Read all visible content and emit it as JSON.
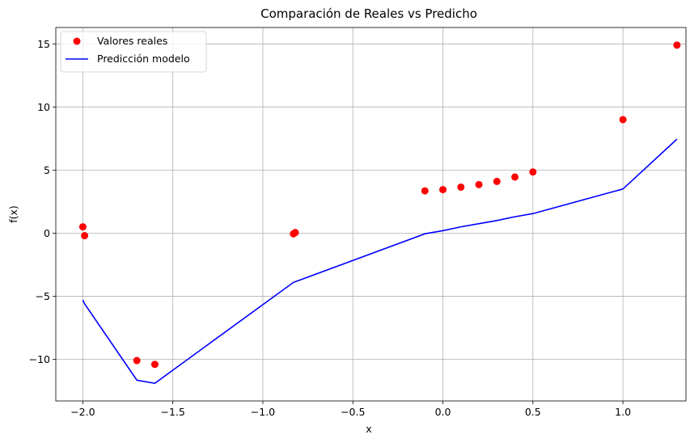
{
  "chart_data": {
    "type": "line",
    "title": "Comparación de Reales vs Predicho",
    "xlabel": "x",
    "ylabel": "f(x)",
    "xlim": [
      -2.15,
      1.35
    ],
    "ylim": [
      -13.3,
      16.3
    ],
    "xticks": [
      -2.0,
      -1.5,
      -1.0,
      -0.5,
      0.0,
      0.5,
      1.0
    ],
    "xtick_labels": [
      "−2.0",
      "−1.5",
      "−1.0",
      "−0.5",
      "0.0",
      "0.5",
      "1.0"
    ],
    "yticks": [
      -10,
      -5,
      0,
      5,
      10,
      15
    ],
    "ytick_labels": [
      "−10",
      "−5",
      "0",
      "5",
      "10",
      "15"
    ],
    "grid": true,
    "legend_position": "top-left",
    "series": [
      {
        "name": "Valores reales",
        "kind": "scatter",
        "color": "#ff0000",
        "x": [
          -2.0,
          -1.99,
          -1.7,
          -1.6,
          -0.83,
          -0.82,
          -0.1,
          0.0,
          0.1,
          0.2,
          0.3,
          0.4,
          0.5,
          1.0,
          1.3
        ],
        "y": [
          0.5,
          -0.2,
          -10.1,
          -10.4,
          -0.05,
          0.05,
          3.35,
          3.45,
          3.65,
          3.85,
          4.1,
          4.45,
          4.85,
          9.0,
          14.9
        ]
      },
      {
        "name": "Predicción modelo",
        "kind": "line",
        "color": "#0000ff",
        "x": [
          -2.0,
          -1.99,
          -1.7,
          -1.6,
          -0.83,
          -0.82,
          -0.1,
          0.0,
          0.1,
          0.2,
          0.3,
          0.4,
          0.5,
          1.0,
          1.3
        ],
        "y": [
          -5.3,
          -5.6,
          -11.65,
          -11.9,
          -3.9,
          -3.85,
          -0.05,
          0.2,
          0.5,
          0.75,
          1.0,
          1.3,
          1.55,
          3.5,
          7.45
        ]
      }
    ]
  }
}
